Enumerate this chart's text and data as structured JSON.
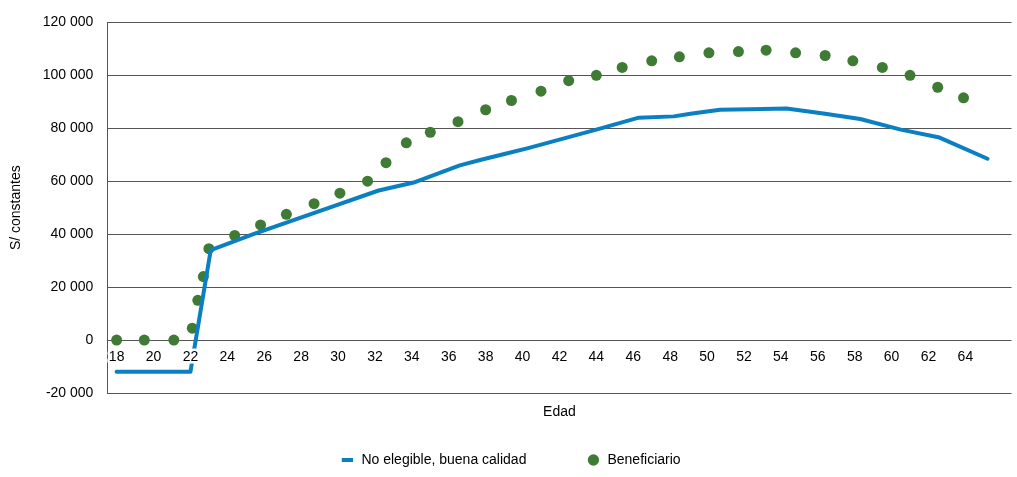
{
  "chart_data": {
    "type": "line",
    "xlabel": "Edad",
    "ylabel": "S/ constantes",
    "xlim": [
      17.5,
      66.5
    ],
    "xticks": [
      18,
      20,
      22,
      24,
      26,
      28,
      30,
      32,
      34,
      36,
      38,
      40,
      42,
      44,
      46,
      48,
      50,
      52,
      54,
      56,
      58,
      60,
      62,
      64
    ],
    "ylim": [
      -20000,
      120000
    ],
    "yticks": [
      {
        "value": -20000,
        "label": "-20 000"
      },
      0,
      {
        "value": 20000,
        "label": "20 000"
      },
      {
        "value": 40000,
        "label": "40 000"
      },
      {
        "value": 60000,
        "label": "60 000"
      },
      {
        "value": 80000,
        "label": "80 000"
      },
      {
        "value": 100000,
        "label": "100 000"
      },
      {
        "value": 120000,
        "label": "120 000"
      }
    ],
    "grid": "y",
    "legend": "bottom",
    "series": [
      {
        "name": "No elegible, buena calidad",
        "type": "line",
        "marker": "none",
        "line_style": "solid",
        "color": "#0a7fc2",
        "x": [
          18,
          22,
          23.1,
          25.8,
          29.3,
          32.2,
          34.1,
          36.6,
          37.7,
          40.3,
          44,
          46.3,
          48.2,
          49.1,
          50.7,
          54.3,
          56.4,
          58.3,
          60.5,
          62.6,
          65.2
        ],
        "values": [
          -12000,
          -12000,
          34000,
          41000,
          49500,
          56500,
          59500,
          66000,
          68000,
          72500,
          79500,
          84000,
          84500,
          85500,
          87000,
          87500,
          85500,
          83500,
          79500,
          76500,
          68500
        ]
      },
      {
        "name": "Beneficiario",
        "type": "scatter",
        "marker": "circle",
        "color": "#3f7b35",
        "x": [
          18,
          19.5,
          21.1,
          22.1,
          22.4,
          22.7,
          23,
          24.4,
          25.8,
          27.2,
          28.7,
          30.1,
          31.6,
          32.6,
          33.7,
          35,
          36.5,
          38,
          39.4,
          41,
          42.5,
          44,
          45.4,
          47,
          48.5,
          50.1,
          51.7,
          53.2,
          54.8,
          56.4,
          57.9,
          59.5,
          61,
          62.5,
          63.9
        ],
        "values": [
          0,
          0,
          0,
          4500,
          15000,
          24000,
          34500,
          39500,
          43500,
          47500,
          51500,
          55500,
          60000,
          67000,
          74500,
          78500,
          82500,
          87000,
          90500,
          94000,
          98000,
          100000,
          103000,
          105500,
          107000,
          108500,
          109000,
          109500,
          108500,
          107500,
          105500,
          103000,
          100000,
          95500,
          91500
        ]
      }
    ]
  }
}
